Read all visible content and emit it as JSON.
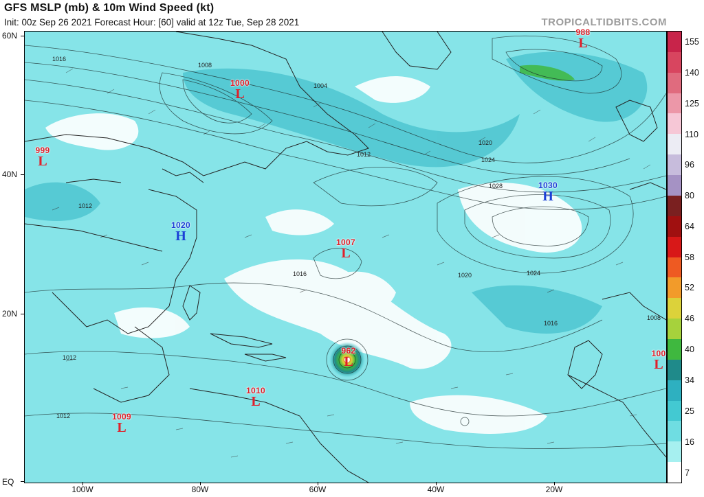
{
  "header": {
    "title": "GFS MSLP (mb) & 10m Wind Speed (kt)",
    "subtitle": "Init: 00z Sep 26 2021   Forecast Hour: [60]   valid at 12z Tue, Sep 28 2021",
    "brand": "TROPICALTIDBITS.COM"
  },
  "map": {
    "lat_labels": [
      "60N",
      "40N",
      "20N",
      "EQ"
    ],
    "lon_labels": [
      "100W",
      "80W",
      "60W",
      "40W",
      "20W"
    ],
    "pressure_systems": [
      {
        "type": "L",
        "value": "1000"
      },
      {
        "type": "L",
        "value": "999"
      },
      {
        "type": "L",
        "value": "988"
      },
      {
        "type": "H",
        "value": "1030"
      },
      {
        "type": "H",
        "value": "1020"
      },
      {
        "type": "L",
        "value": "1007"
      },
      {
        "type": "L",
        "value": "962"
      },
      {
        "type": "L",
        "value": "1010"
      },
      {
        "type": "L",
        "value": "1009"
      },
      {
        "type": "L",
        "value": "100"
      }
    ],
    "isobar_labels": [
      "1016",
      "1008",
      "1004",
      "1012",
      "1024",
      "1028",
      "1020"
    ]
  },
  "colorbar": {
    "labels": [
      "155",
      "140",
      "125",
      "110",
      "96",
      "80",
      "64",
      "58",
      "52",
      "46",
      "40",
      "34",
      "25",
      "16",
      "7"
    ],
    "colors": [
      "#c8244a",
      "#d8455f",
      "#e06b7e",
      "#ec97a8",
      "#f6c7d6",
      "#ececf4",
      "#c7bcdc",
      "#a592c4",
      "#7a2020",
      "#a01010",
      "#d81818",
      "#ee5a22",
      "#f29b2a",
      "#dcd23a",
      "#a6d23c",
      "#3fb83f",
      "#1f8a8a",
      "#2eb0c0",
      "#43c9d2",
      "#6fdde2",
      "#a6f0f0",
      "#ffffff"
    ]
  }
}
